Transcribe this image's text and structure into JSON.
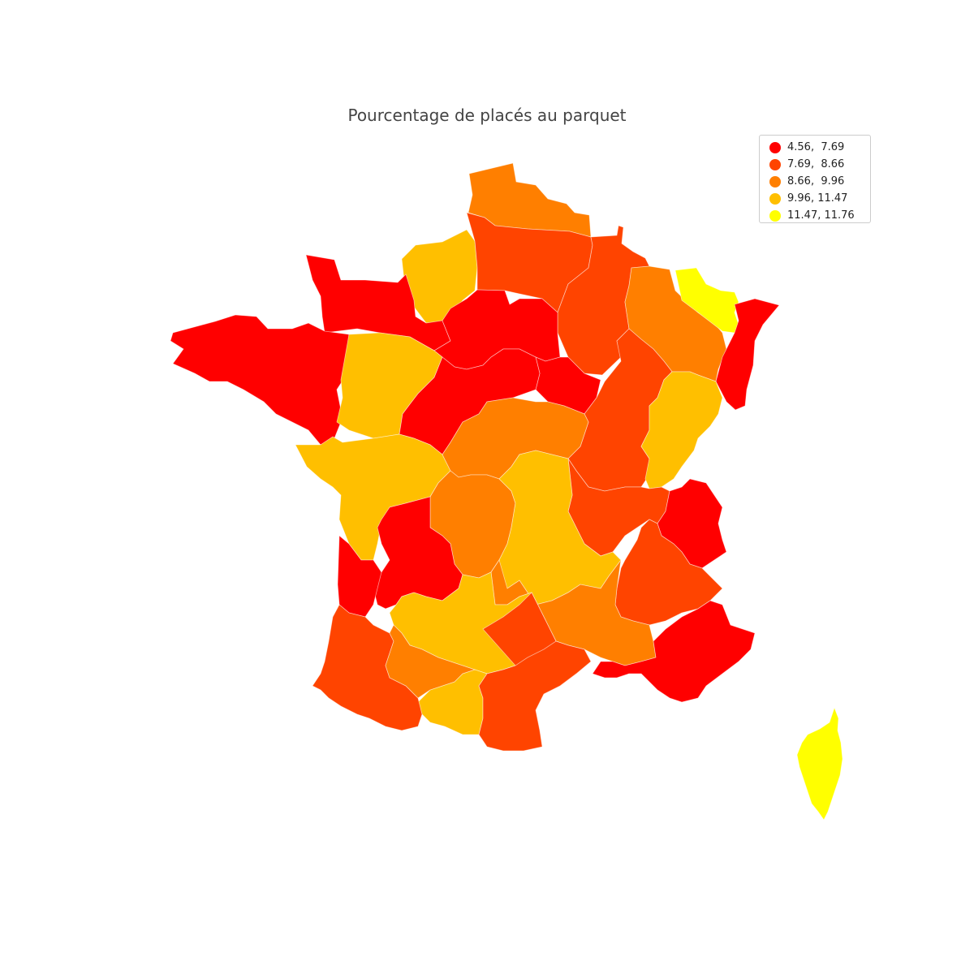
{
  "title": "Pourcentage de placés au parquet",
  "legend": {
    "items": [
      {
        "label": "4.56,  7.69",
        "range": [
          4.56,
          7.69
        ],
        "color": "#ff0000"
      },
      {
        "label": "7.69,  8.66",
        "range": [
          7.69,
          8.66
        ],
        "color": "#ff4400"
      },
      {
        "label": "8.66,  9.96",
        "range": [
          8.66,
          9.96
        ],
        "color": "#ff7f00"
      },
      {
        "label": "9.96, 11.47",
        "range": [
          9.96,
          11.47
        ],
        "color": "#ffbf00"
      },
      {
        "label": "11.47, 11.76",
        "range": [
          11.47,
          11.76
        ],
        "color": "#ffff00"
      }
    ]
  },
  "chart_data": {
    "type": "choropleth",
    "title": "Pourcentage de placés au parquet",
    "legend_placement": "top-right",
    "classes": [
      {
        "range": [
          4.56,
          7.69
        ],
        "color": "#ff0000"
      },
      {
        "range": [
          7.69,
          8.66
        ],
        "color": "#ff4400"
      },
      {
        "range": [
          8.66,
          9.96
        ],
        "color": "#ff7f00"
      },
      {
        "range": [
          9.96,
          11.47
        ],
        "color": "#ffbf00"
      },
      {
        "range": [
          11.47,
          11.76
        ],
        "color": "#ffff00"
      }
    ],
    "regions": [
      {
        "name": "hauts-de-france-north",
        "class": 2
      },
      {
        "name": "somme-picardie",
        "class": 3
      },
      {
        "name": "aisne-ardennes",
        "class": 1
      },
      {
        "name": "champagne",
        "class": 1
      },
      {
        "name": "lorraine",
        "class": 2
      },
      {
        "name": "bas-rhin-nord",
        "class": 4
      },
      {
        "name": "alsace",
        "class": 0
      },
      {
        "name": "normandie",
        "class": 0
      },
      {
        "name": "bretagne",
        "class": 0
      },
      {
        "name": "ile-de-france",
        "class": 0
      },
      {
        "name": "yonne-aube",
        "class": 0
      },
      {
        "name": "maine-anjou",
        "class": 3
      },
      {
        "name": "centre",
        "class": 0
      },
      {
        "name": "cote-d-or",
        "class": 1
      },
      {
        "name": "franche-comte",
        "class": 3
      },
      {
        "name": "poitou-charentes",
        "class": 3
      },
      {
        "name": "berry-bourbonnais",
        "class": 2
      },
      {
        "name": "saone-loire",
        "class": 1
      },
      {
        "name": "limousin",
        "class": 2
      },
      {
        "name": "auvergne",
        "class": 3
      },
      {
        "name": "rhone-ain",
        "class": 0
      },
      {
        "name": "savoie",
        "class": 1
      },
      {
        "name": "dordogne-gironde-east",
        "class": 0
      },
      {
        "name": "gironde-landes-north",
        "class": 0
      },
      {
        "name": "dauphine-alpes",
        "class": 2
      },
      {
        "name": "lot-aveyron",
        "class": 3
      },
      {
        "name": "gard-herault",
        "class": 1
      },
      {
        "name": "drome-ardeche-vaucluse",
        "class": 3
      },
      {
        "name": "provence",
        "class": 0
      },
      {
        "name": "landes-pyrenees-atlantiques",
        "class": 1
      },
      {
        "name": "gers-haute-garonne",
        "class": 2
      },
      {
        "name": "aude-pyrenees-orientales",
        "class": 1
      },
      {
        "name": "corse",
        "class": 4
      }
    ]
  }
}
